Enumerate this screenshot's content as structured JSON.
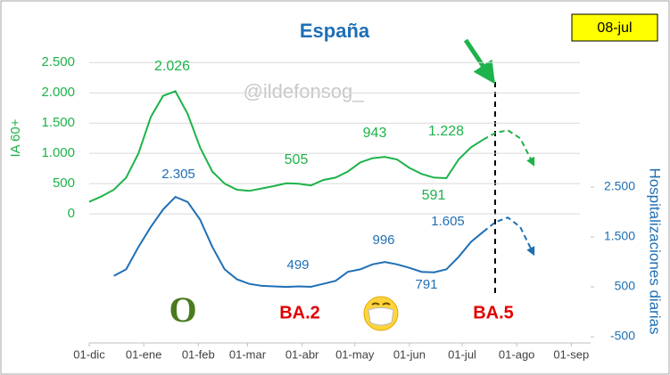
{
  "chart_data": {
    "type": "line",
    "title": "España",
    "date_box": "08-jul",
    "watermark": "@ildefonsog_",
    "ylabel": "IA 60+",
    "y2label": "Hospitalizaciones diarias",
    "annotations": [
      "2.026",
      "505",
      "943",
      "1.228",
      "591",
      "2.305",
      "499",
      "996",
      "1.605",
      "791",
      "O",
      "BA.2",
      "BA.5"
    ],
    "xlim": [
      0,
      285
    ],
    "xticks": [
      {
        "value": 0,
        "label": "01-dic"
      },
      {
        "value": 31,
        "label": "01-ene"
      },
      {
        "value": 62,
        "label": "01-feb"
      },
      {
        "value": 90,
        "label": "01-mar"
      },
      {
        "value": 121,
        "label": "01-abr"
      },
      {
        "value": 151,
        "label": "01-may"
      },
      {
        "value": 182,
        "label": "01-jun"
      },
      {
        "value": 212,
        "label": "01-jul"
      },
      {
        "value": 243,
        "label": "01-ago"
      },
      {
        "value": 274,
        "label": "01-sep"
      }
    ],
    "ylim": [
      -2130,
      2650
    ],
    "yticks": [
      0,
      {
        "value": 500,
        "label": "500"
      },
      {
        "value": 1000,
        "label": "1.000"
      },
      {
        "value": 1500,
        "label": "1.500"
      },
      {
        "value": 2000,
        "label": "2.000"
      },
      {
        "value": 2500,
        "label": "2.500"
      }
    ],
    "y2lim": [
      -625,
      5180
    ],
    "y2ticks": [
      -500,
      500,
      {
        "value": 1500,
        "label": "1.500"
      },
      {
        "value": 2500,
        "label": "2.500"
      }
    ],
    "grid": true,
    "x": [
      0,
      7,
      14,
      21,
      28,
      35,
      42,
      49,
      56,
      63,
      70,
      77,
      84,
      91,
      98,
      105,
      112,
      119,
      126,
      133,
      140,
      147,
      154,
      161,
      168,
      175,
      182,
      189,
      196,
      203,
      210,
      217,
      224,
      231,
      238,
      245,
      252
    ],
    "series": [
      {
        "color": "#1db34a",
        "style": "solid",
        "axis": "y",
        "values": [
          200,
          290,
          400,
          600,
          1000,
          1600,
          1950,
          2026,
          1650,
          1100,
          700,
          500,
          400,
          380,
          420,
          460,
          505,
          500,
          470,
          560,
          600,
          700,
          850,
          920,
          943,
          900,
          760,
          660,
          600,
          591,
          900,
          1100,
          1228,
          null,
          null,
          null,
          null
        ]
      },
      {
        "color": "#1db34a",
        "style": "dashed",
        "axis": "y",
        "values": [
          null,
          null,
          null,
          null,
          null,
          null,
          null,
          null,
          null,
          null,
          null,
          null,
          null,
          null,
          null,
          null,
          null,
          null,
          null,
          null,
          null,
          null,
          null,
          null,
          null,
          null,
          null,
          null,
          null,
          null,
          null,
          null,
          1228,
          1340,
          1380,
          1250,
          850
        ]
      },
      {
        "color": "#1f6fb5",
        "style": "solid",
        "axis": "y2",
        "values": [
          null,
          null,
          720,
          850,
          1300,
          1700,
          2050,
          2305,
          2200,
          1850,
          1300,
          850,
          650,
          560,
          520,
          510,
          499,
          510,
          500,
          560,
          620,
          800,
          850,
          950,
          996,
          950,
          880,
          800,
          791,
          850,
          1100,
          1400,
          1605,
          null,
          null,
          null,
          null
        ]
      },
      {
        "color": "#1f6fb5",
        "style": "dashed",
        "axis": "y2",
        "values": [
          null,
          null,
          null,
          null,
          null,
          null,
          null,
          null,
          null,
          null,
          null,
          null,
          null,
          null,
          null,
          null,
          null,
          null,
          null,
          null,
          null,
          null,
          null,
          null,
          null,
          null,
          null,
          null,
          null,
          null,
          null,
          null,
          1605,
          1800,
          1890,
          1700,
          1200
        ]
      }
    ]
  }
}
